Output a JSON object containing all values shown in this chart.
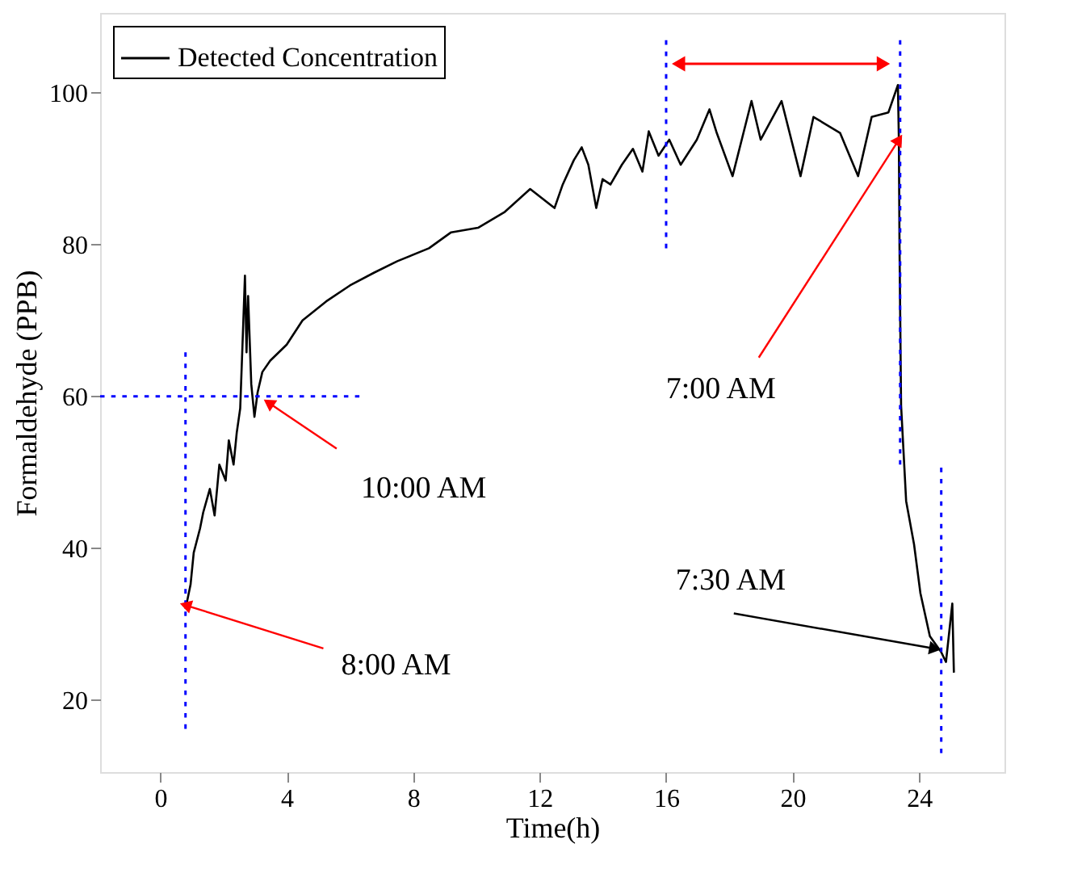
{
  "chart_data": {
    "type": "line",
    "xlabel": "Time(h)",
    "ylabel": "Formaldehyde (PPB)",
    "xlim": [
      -1.9,
      26.7
    ],
    "ylim": [
      10.5,
      110.5
    ],
    "xticks": [
      0,
      4,
      8,
      12,
      16,
      20,
      24
    ],
    "yticks": [
      20,
      40,
      60,
      80,
      100
    ],
    "grid": false,
    "legend": "top left",
    "marker": "none",
    "series": [
      {
        "name": "Detected Concentration",
        "color": "#000000",
        "line_style": "solid",
        "x": [
          0.8,
          0.96,
          1.06,
          1.26,
          1.36,
          1.57,
          1.72,
          1.87,
          2.07,
          2.17,
          2.32,
          2.42,
          2.53,
          2.63,
          2.68,
          2.73,
          2.78,
          2.88,
          2.98,
          3.08,
          3.23,
          3.48,
          4.0,
          4.5,
          5.25,
          6.0,
          6.77,
          7.5,
          8.5,
          9.2,
          10.05,
          10.9,
          11.7,
          12.47,
          12.73,
          13.08,
          13.33,
          13.54,
          13.79,
          13.99,
          14.24,
          14.6,
          14.95,
          15.25,
          15.45,
          15.76,
          16.1,
          16.46,
          16.97,
          17.37,
          17.6,
          18.1,
          18.7,
          18.99,
          19.65,
          20.25,
          20.66,
          21.5,
          22.07,
          22.5,
          23.03,
          23.33,
          23.36,
          23.38,
          23.43,
          23.59,
          23.84,
          24.04,
          24.34,
          24.7,
          24.85,
          25.05,
          25.1
        ],
        "values": [
          32,
          35.2,
          39.4,
          42.6,
          44.7,
          47.8,
          44.3,
          51,
          48.9,
          54.2,
          51,
          55.2,
          58.4,
          70,
          75.9,
          65.8,
          73.2,
          61.6,
          57.3,
          60.5,
          63.2,
          64.7,
          66.8,
          70,
          72.5,
          74.6,
          76.3,
          77.8,
          79.5,
          81.6,
          82.2,
          84.3,
          87.3,
          84.8,
          87.9,
          91.1,
          92.8,
          90.5,
          84.8,
          88.6,
          87.9,
          90.5,
          92.6,
          89.6,
          94.9,
          91.7,
          93.8,
          90.5,
          93.8,
          97.8,
          94.7,
          89,
          98.9,
          93.8,
          98.9,
          89,
          96.8,
          94.7,
          89,
          96.8,
          97.4,
          101,
          93.8,
          79.9,
          58.8,
          46.2,
          40.5,
          34.1,
          28.4,
          26.3,
          25,
          32.7,
          23.6
        ]
      },
      {
        "color": "#0000ff",
        "line_style": "dotted",
        "x": [
          0.8,
          0.8
        ],
        "values": [
          16.2,
          65.8
        ]
      },
      {
        "color": "#0000ff",
        "line_style": "dotted",
        "x": [
          -1.9,
          6.3
        ],
        "values": [
          60,
          60
        ]
      },
      {
        "color": "#0000ff",
        "line_style": "dotted",
        "x": [
          16,
          16
        ],
        "values": [
          79.5,
          106.9
        ]
      },
      {
        "color": "#0000ff",
        "line_style": "dotted",
        "x": [
          23.4,
          23.4
        ],
        "values": [
          51,
          106.9
        ]
      },
      {
        "color": "#0000ff",
        "line_style": "dotted",
        "x": [
          24.7,
          24.7
        ],
        "values": [
          13,
          50.6
        ]
      },
      {
        "color": "#ff0000",
        "line_style": "solid",
        "marker": "triangle",
        "x": [
          16.46,
          22.8
        ],
        "values": [
          103.8,
          103.8
        ]
      }
    ],
    "annotations": [
      {
        "text": "8:00 AM",
        "x": 0.86,
        "y": 32.4
      },
      {
        "text": "10:00 AM",
        "x": 3.48,
        "y": 59
      },
      {
        "text": "7:00 AM",
        "x": 23.33,
        "y": 93.6
      },
      {
        "text": "7:30 AM",
        "x": 24.44,
        "y": 26.8
      }
    ]
  }
}
